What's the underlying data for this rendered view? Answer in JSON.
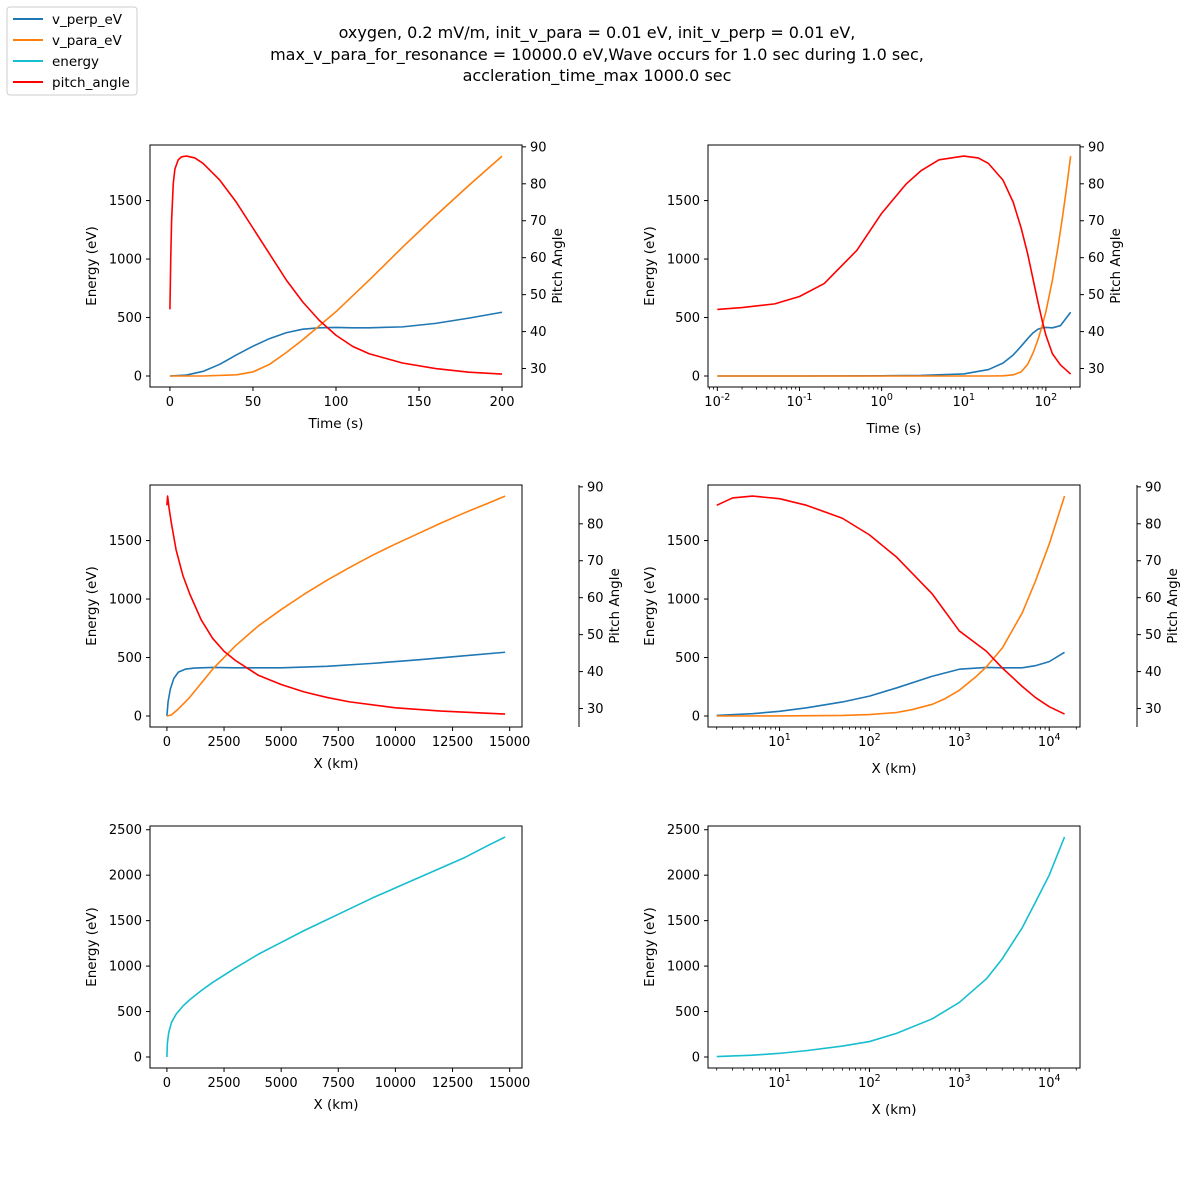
{
  "figure": {
    "title_lines": [
      "oxygen, 0.2 mV/m, init_v_para = 0.01 eV, init_v_perp = 0.01 eV,",
      "max_v_para_for_resonance = 10000.0 eV,Wave occurs for 1.0    sec during 1.0 sec,",
      "accleration_time_max 1000.0 sec"
    ],
    "legend": [
      {
        "name": "v_perp_eV",
        "color": "#1f77b4"
      },
      {
        "name": "v_para_eV",
        "color": "#ff7f0e"
      },
      {
        "name": "energy",
        "color": "#17becf"
      },
      {
        "name": "pitch_angle",
        "color": "#ff0000"
      }
    ]
  },
  "chart_data": [
    {
      "type": "line",
      "panel": "top-left",
      "xlabel": "Time (s)",
      "ylabel": "Energy (eV)",
      "y2label": "Pitch Angle",
      "xscale": "linear",
      "xlim": [
        -12,
        212
      ],
      "ylim": [
        -94,
        1975
      ],
      "y2lim": [
        25,
        90.5
      ],
      "xticks": [
        0,
        50,
        100,
        150,
        200
      ],
      "xtick_labels": [
        "0",
        "50",
        "100",
        "150",
        "200"
      ],
      "yticks": [
        0,
        500,
        1000,
        1500
      ],
      "ytick_labels": [
        "0",
        "500",
        "1000",
        "1500"
      ],
      "y2ticks": [
        30,
        40,
        50,
        60,
        70,
        80,
        90
      ],
      "y2tick_labels": [
        "30",
        "40",
        "50",
        "60",
        "70",
        "80",
        "90"
      ],
      "series": [
        {
          "name": "v_perp_eV",
          "color": "#1f77b4",
          "axis": "y",
          "x": [
            0,
            10,
            20,
            30,
            40,
            50,
            60,
            70,
            80,
            90,
            100,
            110,
            120,
            140,
            160,
            180,
            200
          ],
          "y": [
            0,
            8,
            40,
            100,
            180,
            255,
            320,
            370,
            400,
            412,
            415,
            412,
            412,
            420,
            450,
            495,
            545
          ]
        },
        {
          "name": "v_para_eV",
          "color": "#ff7f0e",
          "axis": "y",
          "x": [
            0,
            20,
            40,
            50,
            60,
            70,
            80,
            90,
            100,
            120,
            140,
            160,
            180,
            200
          ],
          "y": [
            0,
            0,
            10,
            35,
            100,
            200,
            310,
            430,
            550,
            820,
            1100,
            1370,
            1630,
            1880
          ]
        },
        {
          "name": "pitch_angle",
          "color": "#ff0000",
          "axis": "y2",
          "x": [
            0,
            0.5,
            1,
            2,
            3,
            5,
            7,
            10,
            15,
            20,
            30,
            40,
            50,
            60,
            70,
            80,
            90,
            100,
            110,
            120,
            140,
            160,
            180,
            200
          ],
          "y": [
            46,
            60,
            70,
            80,
            84,
            86.5,
            87.3,
            87.5,
            87,
            85.5,
            81,
            75,
            68,
            61,
            54,
            48,
            43,
            39,
            36,
            34,
            31.5,
            30,
            29,
            28.5
          ]
        }
      ]
    },
    {
      "type": "line",
      "panel": "top-right",
      "xlabel": "Time (s)",
      "ylabel": "Energy (eV)",
      "y2label": "Pitch Angle",
      "xscale": "log",
      "xlim": [
        0.0077,
        260
      ],
      "ylim": [
        -94,
        1975
      ],
      "y2lim": [
        25,
        90.5
      ],
      "xticks": [
        0.01,
        0.1,
        1,
        10,
        100
      ],
      "xtick_labels": [
        "10^-2",
        "10^-1",
        "10^0",
        "10^1",
        "10^2"
      ],
      "yticks": [
        0,
        500,
        1000,
        1500
      ],
      "ytick_labels": [
        "0",
        "500",
        "1000",
        "1500"
      ],
      "y2ticks": [
        30,
        40,
        50,
        60,
        70,
        80,
        90
      ],
      "y2tick_labels": [
        "30",
        "40",
        "50",
        "60",
        "70",
        "80",
        "90"
      ],
      "series": [
        {
          "name": "v_perp_eV",
          "color": "#1f77b4",
          "axis": "y",
          "x": [
            0.01,
            0.1,
            1,
            3,
            10,
            20,
            30,
            40,
            50,
            60,
            70,
            80,
            90,
            100,
            120,
            150,
            200
          ],
          "y": [
            0,
            0,
            2,
            5,
            18,
            55,
            110,
            180,
            255,
            320,
            370,
            400,
            412,
            415,
            412,
            430,
            545
          ]
        },
        {
          "name": "v_para_eV",
          "color": "#ff7f0e",
          "axis": "y",
          "x": [
            0.01,
            1,
            10,
            20,
            30,
            40,
            50,
            60,
            70,
            80,
            90,
            100,
            120,
            140,
            160,
            180,
            200
          ],
          "y": [
            0,
            0,
            0,
            0,
            2,
            10,
            35,
            100,
            200,
            310,
            430,
            550,
            820,
            1100,
            1370,
            1630,
            1880
          ]
        },
        {
          "name": "pitch_angle",
          "color": "#ff0000",
          "axis": "y2",
          "x": [
            0.01,
            0.02,
            0.05,
            0.1,
            0.2,
            0.5,
            1,
            2,
            3,
            5,
            10,
            15,
            20,
            30,
            40,
            50,
            60,
            70,
            80,
            90,
            100,
            120,
            150,
            200
          ],
          "y": [
            46,
            46.5,
            47.5,
            49.5,
            53,
            62,
            72,
            80,
            83.5,
            86.5,
            87.5,
            87,
            85.5,
            81,
            75,
            68,
            61,
            54,
            48,
            43,
            39,
            34,
            31,
            28.5
          ]
        }
      ]
    },
    {
      "type": "line",
      "panel": "middle-left",
      "xlabel": "X (km)",
      "ylabel": "Energy (eV)",
      "y2label": "Pitch Angle",
      "xscale": "linear",
      "xlim": [
        -740,
        15540
      ],
      "ylim": [
        -94,
        1975
      ],
      "y2lim": [
        25,
        90.5
      ],
      "xticks": [
        0,
        2500,
        5000,
        7500,
        10000,
        12500,
        15000
      ],
      "xtick_labels": [
        "0",
        "2500",
        "5000",
        "7500",
        "10000",
        "12500",
        "15000"
      ],
      "yticks": [
        0,
        500,
        1000,
        1500
      ],
      "ytick_labels": [
        "0",
        "500",
        "1000",
        "1500"
      ],
      "y2ticks": [
        30,
        40,
        50,
        60,
        70,
        80,
        90
      ],
      "y2tick_labels": [
        "30",
        "40",
        "50",
        "60",
        "70",
        "80",
        "90"
      ],
      "series": [
        {
          "name": "v_perp_eV",
          "color": "#1f77b4",
          "axis": "y",
          "x": [
            0,
            50,
            150,
            300,
            500,
            800,
            1200,
            2000,
            3000,
            5000,
            7000,
            9000,
            11000,
            13000,
            14800
          ],
          "y": [
            0,
            120,
            230,
            320,
            375,
            400,
            410,
            415,
            412,
            412,
            425,
            450,
            480,
            515,
            545
          ]
        },
        {
          "name": "v_para_eV",
          "color": "#ff7f0e",
          "axis": "y",
          "x": [
            0,
            200,
            500,
            1000,
            2000,
            3000,
            4000,
            5000,
            6000,
            7000,
            8000,
            9000,
            10000,
            11000,
            12000,
            13000,
            14000,
            14800
          ],
          "y": [
            0,
            10,
            60,
            160,
            400,
            600,
            770,
            910,
            1040,
            1160,
            1270,
            1375,
            1470,
            1560,
            1650,
            1735,
            1815,
            1880
          ]
        },
        {
          "name": "pitch_angle",
          "color": "#ff0000",
          "axis": "y2",
          "x": [
            0,
            30,
            100,
            200,
            400,
            700,
            1000,
            1500,
            2000,
            2500,
            3000,
            4000,
            5000,
            6000,
            7000,
            8000,
            10000,
            12000,
            14800
          ],
          "y": [
            85,
            87.5,
            84,
            80,
            73,
            66,
            61,
            54,
            49,
            45.5,
            43,
            39,
            36.5,
            34.5,
            33,
            31.8,
            30.2,
            29.3,
            28.5
          ]
        }
      ]
    },
    {
      "type": "line",
      "panel": "middle-right",
      "xlabel": "X (km)",
      "ylabel": "Energy (eV)",
      "y2label": "Pitch Angle",
      "xscale": "log",
      "xlim": [
        1.6,
        22000
      ],
      "ylim": [
        -94,
        1975
      ],
      "y2lim": [
        25,
        90.5
      ],
      "xticks": [
        10,
        100,
        1000,
        10000
      ],
      "xtick_labels": [
        "10^1",
        "10^2",
        "10^3",
        "10^4"
      ],
      "yticks": [
        0,
        500,
        1000,
        1500
      ],
      "ytick_labels": [
        "0",
        "500",
        "1000",
        "1500"
      ],
      "y2ticks": [
        30,
        40,
        50,
        60,
        70,
        80,
        90
      ],
      "y2tick_labels": [
        "30",
        "40",
        "50",
        "60",
        "70",
        "80",
        "90"
      ],
      "series": [
        {
          "name": "v_perp_eV",
          "color": "#1f77b4",
          "axis": "y",
          "x": [
            2,
            5,
            10,
            20,
            50,
            100,
            200,
            500,
            1000,
            2000,
            3000,
            5000,
            7000,
            10000,
            14800
          ],
          "y": [
            5,
            20,
            40,
            70,
            120,
            170,
            240,
            340,
            400,
            415,
            412,
            412,
            430,
            465,
            545
          ]
        },
        {
          "name": "v_para_eV",
          "color": "#ff7f0e",
          "axis": "y",
          "x": [
            2,
            10,
            50,
            100,
            200,
            300,
            500,
            700,
            1000,
            1500,
            2000,
            3000,
            5000,
            7000,
            10000,
            14800
          ],
          "y": [
            0,
            1,
            5,
            12,
            30,
            55,
            100,
            150,
            220,
            330,
            420,
            580,
            880,
            1150,
            1470,
            1880
          ]
        },
        {
          "name": "pitch_angle",
          "color": "#ff0000",
          "axis": "y2",
          "x": [
            2,
            3,
            5,
            10,
            20,
            50,
            100,
            200,
            500,
            1000,
            2000,
            3000,
            5000,
            7000,
            10000,
            14800
          ],
          "y": [
            85,
            87,
            87.5,
            86.8,
            85,
            81.5,
            77,
            71,
            61,
            51,
            45.5,
            41,
            36,
            33,
            30.5,
            28.5
          ]
        }
      ]
    },
    {
      "type": "line",
      "panel": "bottom-left",
      "xlabel": "X (km)",
      "ylabel": "Energy (eV)",
      "xscale": "linear",
      "xlim": [
        -740,
        15540
      ],
      "ylim": [
        -121,
        2541
      ],
      "xticks": [
        0,
        2500,
        5000,
        7500,
        10000,
        12500,
        15000
      ],
      "xtick_labels": [
        "0",
        "2500",
        "5000",
        "7500",
        "10000",
        "12500",
        "15000"
      ],
      "yticks": [
        0,
        500,
        1000,
        1500,
        2000,
        2500
      ],
      "ytick_labels": [
        "0",
        "500",
        "1000",
        "1500",
        "2000",
        "2500"
      ],
      "series": [
        {
          "name": "energy",
          "color": "#17becf",
          "axis": "y",
          "x": [
            0,
            20,
            80,
            200,
            400,
            700,
            1000,
            1500,
            2000,
            3000,
            4000,
            5000,
            6000,
            7000,
            8000,
            9000,
            10000,
            11000,
            12000,
            13000,
            14000,
            14800
          ],
          "y": [
            0,
            150,
            270,
            380,
            470,
            560,
            630,
            730,
            820,
            980,
            1130,
            1260,
            1390,
            1510,
            1630,
            1750,
            1860,
            1970,
            2080,
            2190,
            2320,
            2420
          ]
        }
      ]
    },
    {
      "type": "line",
      "panel": "bottom-right",
      "xlabel": "X (km)",
      "ylabel": "Energy (eV)",
      "xscale": "log",
      "xlim": [
        1.6,
        22000
      ],
      "ylim": [
        -121,
        2541
      ],
      "xticks": [
        10,
        100,
        1000,
        10000
      ],
      "xtick_labels": [
        "10^1",
        "10^2",
        "10^3",
        "10^4"
      ],
      "yticks": [
        0,
        500,
        1000,
        1500,
        2000,
        2500
      ],
      "ytick_labels": [
        "0",
        "500",
        "1000",
        "1500",
        "2000",
        "2500"
      ],
      "series": [
        {
          "name": "energy",
          "color": "#17becf",
          "axis": "y",
          "x": [
            2,
            5,
            10,
            20,
            50,
            100,
            200,
            500,
            1000,
            2000,
            3000,
            5000,
            7000,
            10000,
            14800
          ],
          "y": [
            5,
            20,
            40,
            70,
            120,
            170,
            260,
            420,
            600,
            860,
            1080,
            1420,
            1700,
            2000,
            2420
          ]
        }
      ]
    }
  ]
}
